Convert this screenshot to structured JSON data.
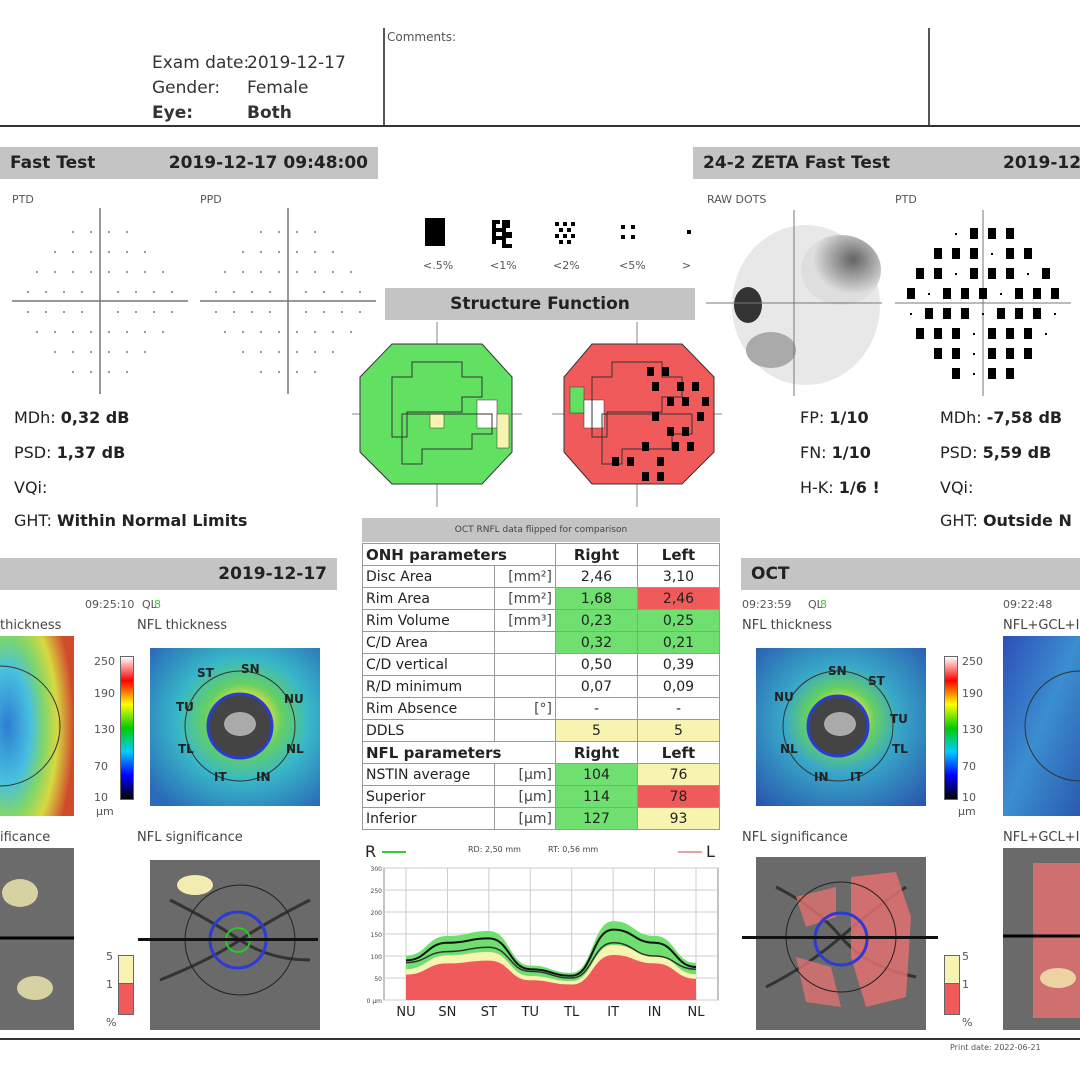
{
  "header": {
    "exam_date_label": "Exam date:",
    "exam_date": "2019-12-17",
    "gender_label": "Gender:",
    "gender": "Female",
    "eye_label": "Eye:",
    "eye": "Both",
    "comments_label": "Comments:"
  },
  "left_vf": {
    "title": "Fast Test",
    "datetime": "2019-12-17 09:48:00",
    "ptd_label": "PTD",
    "ppd_label": "PPD",
    "mdh_label": "MDh:",
    "mdh": "0,32 dB",
    "psd_label": "PSD:",
    "psd": "1,37 dB",
    "vqi_label": "VQi:",
    "ght_label": "GHT:",
    "ght": "Within Normal Limits"
  },
  "right_vf": {
    "title": "24-2 ZETA Fast Test",
    "datetime": "2019-12-1",
    "raw_dots_label": "RAW DOTS",
    "ptd_label": "PTD",
    "fp_label": "FP:",
    "fp": "1/10",
    "fn_label": "FN:",
    "fn": "1/10",
    "hk_label": "H-K:",
    "hk": "1/6 !",
    "mdh_label": "MDh:",
    "mdh": "-7,58 dB",
    "psd_label": "PSD:",
    "psd": "5,59 dB",
    "vqi_label": "VQi:",
    "ght_label": "GHT:",
    "ght": "Outside N"
  },
  "legend": {
    "items": [
      "<.5%",
      "<1%",
      "<2%",
      "<5%",
      ">"
    ]
  },
  "structure_function": {
    "title": "Structure Function"
  },
  "table": {
    "caption": "OCT RNFL data flipped for comparison",
    "onh_header": "ONH parameters",
    "right_header": "Right",
    "left_header": "Left",
    "onh_rows": [
      {
        "name": "Disc Area",
        "unit": "[mm²]",
        "right": "2,46",
        "left": "3,10",
        "rc": "",
        "lc": ""
      },
      {
        "name": "Rim Area",
        "unit": "[mm²]",
        "right": "1,68",
        "left": "2,46",
        "rc": "g",
        "lc": "r"
      },
      {
        "name": "Rim Volume",
        "unit": "[mm³]",
        "right": "0,23",
        "left": "0,25",
        "rc": "g",
        "lc": "g"
      },
      {
        "name": "C/D Area",
        "unit": "",
        "right": "0,32",
        "left": "0,21",
        "rc": "g",
        "lc": "g"
      },
      {
        "name": "C/D vertical",
        "unit": "",
        "right": "0,50",
        "left": "0,39",
        "rc": "",
        "lc": ""
      },
      {
        "name": "R/D minimum",
        "unit": "",
        "right": "0,07",
        "left": "0,09",
        "rc": "",
        "lc": ""
      },
      {
        "name": "Rim Absence",
        "unit": "[°]",
        "right": "-",
        "left": "-",
        "rc": "",
        "lc": ""
      },
      {
        "name": "DDLS",
        "unit": "",
        "right": "5",
        "left": "5",
        "rc": "y",
        "lc": "y"
      }
    ],
    "nfl_header": "NFL parameters",
    "nfl_rows": [
      {
        "name": "NSTIN average",
        "unit": "[µm]",
        "right": "104",
        "left": "76",
        "rc": "g",
        "lc": "y"
      },
      {
        "name": "Superior",
        "unit": "[µm]",
        "right": "114",
        "left": "78",
        "rc": "g",
        "lc": "r"
      },
      {
        "name": "Inferior",
        "unit": "[µm]",
        "right": "127",
        "left": "93",
        "rc": "g",
        "lc": "y"
      }
    ]
  },
  "left_oct": {
    "date": "2019-12-17",
    "time": "09:25:10",
    "ql_label": "QL",
    "ql_value": "8",
    "thickness_label_partial": "thickness",
    "nfl_thickness_label": "NFL thickness",
    "significance_label_partial": "ificance",
    "nfl_significance_label": "NFL significance",
    "scale": [
      "250",
      "190",
      "130",
      "70",
      "10"
    ],
    "scale_unit": "µm",
    "sig_scale": [
      "5",
      "1"
    ],
    "sig_unit": "%",
    "sectors": [
      "ST",
      "SN",
      "NU",
      "TU",
      "TL",
      "NL",
      "IT",
      "IN"
    ]
  },
  "right_oct": {
    "title": "OCT",
    "time1": "09:23:59",
    "time2": "09:22:48",
    "ql_label": "QL",
    "ql_value": "8",
    "nfl_thickness_label": "NFL thickness",
    "nfl_gcl_label": "NFL+GCL+I",
    "nfl_significance_label": "NFL significance",
    "nfl_gcl_sig_label": "NFL+GCL+I",
    "scale": [
      "250",
      "190",
      "130",
      "70",
      "10"
    ],
    "scale_unit": "µm",
    "sig_scale": [
      "5",
      "1"
    ],
    "sig_unit": "%",
    "sectors": [
      "NU",
      "SN",
      "ST",
      "TU",
      "NL",
      "IN",
      "IT",
      "TL"
    ]
  },
  "tsnit": {
    "r_label": "R",
    "l_label": "L",
    "rd_label": "RD: 2,50 mm",
    "rt_label": "RT: 0,56 mm",
    "y_ticks": [
      "300",
      "250",
      "200",
      "150",
      "100",
      "50",
      "0 µm"
    ],
    "x_ticks": [
      "NU",
      "SN",
      "ST",
      "TU",
      "TL",
      "IT",
      "IN",
      "NL"
    ]
  },
  "footer": {
    "print_date": "Print date: 2022-06-21"
  },
  "chart_data": {
    "type": "line",
    "title": "",
    "xlabel": "",
    "ylabel": "",
    "ylim": [
      0,
      300
    ],
    "categories": [
      "NU",
      "SN",
      "ST",
      "TU",
      "TL",
      "IT",
      "IN",
      "NL"
    ],
    "series": [
      {
        "name": "R",
        "values": [
          90,
          130,
          140,
          70,
          55,
          160,
          130,
          75
        ]
      },
      {
        "name": "L",
        "values": [
          85,
          110,
          120,
          65,
          50,
          130,
          100,
          70
        ]
      }
    ],
    "grid": true
  }
}
